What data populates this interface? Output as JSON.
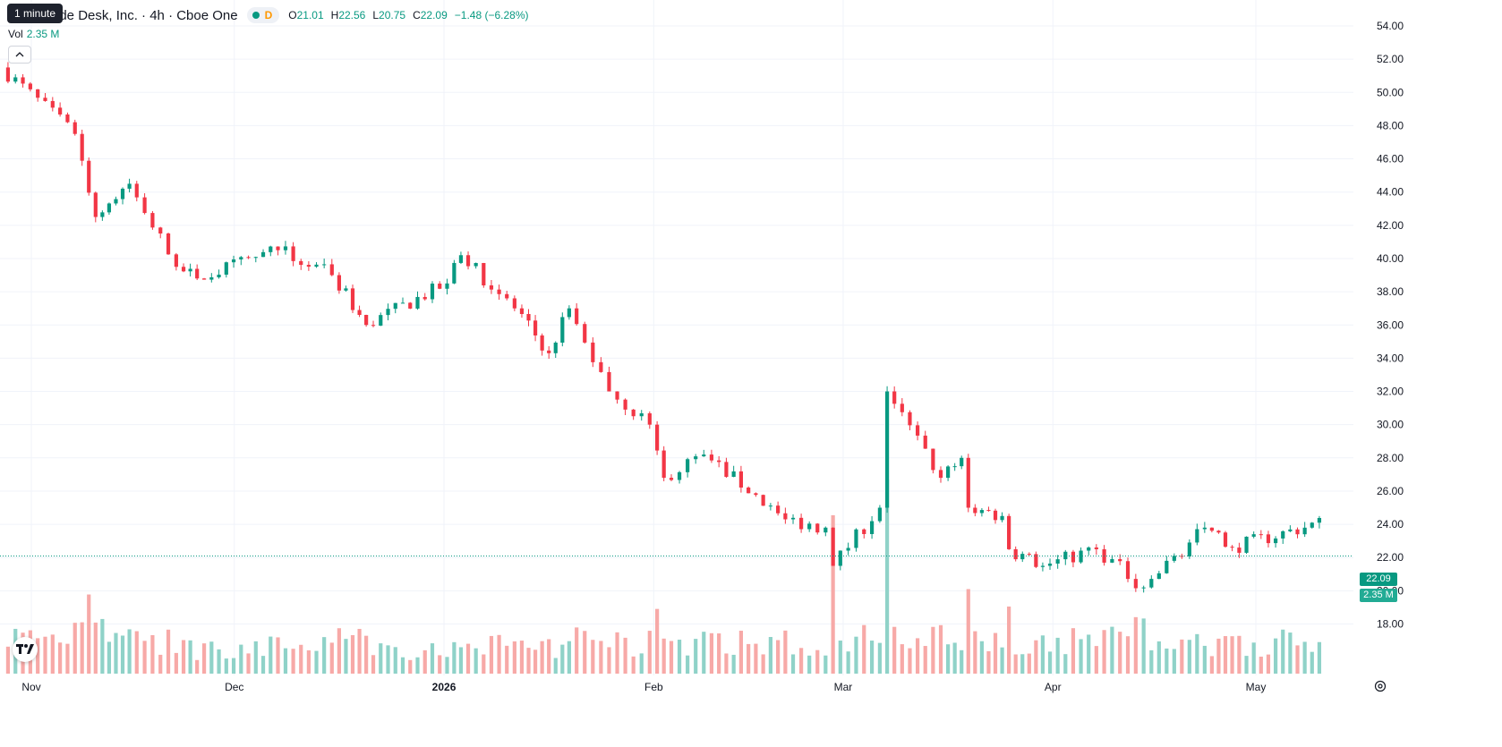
{
  "tooltip": "1 minute",
  "legend": {
    "symbol": "ade Desk, Inc. · 4h · Cboe One",
    "flag": "D",
    "o_label": "O",
    "o": "21.01",
    "h_label": "H",
    "h": "22.56",
    "l_label": "L",
    "l": "20.75",
    "c_label": "C",
    "c": "22.09",
    "change": "−1.48 (−6.28%)"
  },
  "volume_legend": {
    "label": "Vol",
    "value": "2.35 M"
  },
  "price_tag": "22.09",
  "volume_tag": "2.35 M",
  "colors": {
    "up": "#089981",
    "down": "#f23645",
    "vol_up": "#8fd2c8",
    "vol_down": "#f7a9a7",
    "grid": "#f0f3fa",
    "text": "#131722"
  },
  "icons": {
    "collapse": "chevron-up-icon",
    "logo": "tradingview-logo-icon",
    "settings": "gear-icon"
  },
  "chart_data": {
    "type": "candlestick",
    "interval": "4h",
    "y_axis": {
      "min": 18,
      "max": 54,
      "step": 2,
      "position": "right",
      "ticks": [
        "54.00",
        "52.00",
        "50.00",
        "48.00",
        "46.00",
        "44.00",
        "42.00",
        "40.00",
        "38.00",
        "36.00",
        "34.00",
        "32.00",
        "30.00",
        "28.00",
        "26.00",
        "24.00",
        "22.00",
        "20.00",
        "18.00"
      ]
    },
    "x_axis": {
      "labels": [
        {
          "text": "Nov",
          "date": "2025-11-01"
        },
        {
          "text": "Dec",
          "date": "2025-12-01"
        },
        {
          "text": "2026",
          "date": "2026-01-01",
          "bold": true
        },
        {
          "text": "Feb",
          "date": "2026-02-01"
        },
        {
          "text": "Mar",
          "date": "2026-03-01"
        },
        {
          "text": "Apr",
          "date": "2026-04-01"
        },
        {
          "text": "May",
          "date": "2026-05-01"
        }
      ]
    },
    "last_close": 22.09,
    "segments": [
      {
        "start": "2025-10-28",
        "end": "2025-11-08",
        "from": 51.5,
        "to": 47.5,
        "vol": 1.2
      },
      {
        "start": "2025-11-08",
        "end": "2025-11-11",
        "from": 47.5,
        "to": 42.5,
        "vol": 2.8
      },
      {
        "start": "2025-11-11",
        "end": "2025-11-16",
        "from": 42.5,
        "to": 44.5,
        "vol": 1.3
      },
      {
        "start": "2025-11-16",
        "end": "2025-11-23",
        "from": 44.5,
        "to": 39.5,
        "vol": 1.0
      },
      {
        "start": "2025-11-23",
        "end": "2025-11-26",
        "from": 39.5,
        "to": 38.8,
        "vol": 0.8
      },
      {
        "start": "2025-11-26",
        "end": "2025-12-08",
        "from": 38.8,
        "to": 40.5,
        "vol": 0.9
      },
      {
        "start": "2025-12-08",
        "end": "2025-12-16",
        "from": 40.5,
        "to": 39.0,
        "vol": 0.9
      },
      {
        "start": "2025-12-16",
        "end": "2025-12-21",
        "from": 39.0,
        "to": 36.0,
        "vol": 1.2
      },
      {
        "start": "2025-12-21",
        "end": "2026-01-02",
        "from": 36.0,
        "to": 38.5,
        "vol": 0.8
      },
      {
        "start": "2026-01-02",
        "end": "2026-01-04",
        "from": 38.5,
        "to": 40.2,
        "vol": 1.4
      },
      {
        "start": "2026-01-04",
        "end": "2026-01-12",
        "from": 40.2,
        "to": 37.0,
        "vol": 1.0
      },
      {
        "start": "2026-01-12",
        "end": "2026-01-17",
        "from": 37.0,
        "to": 34.3,
        "vol": 0.9
      },
      {
        "start": "2026-01-17",
        "end": "2026-01-20",
        "from": 34.3,
        "to": 37.0,
        "vol": 0.8
      },
      {
        "start": "2026-01-20",
        "end": "2026-01-26",
        "from": 37.0,
        "to": 32.0,
        "vol": 1.3
      },
      {
        "start": "2026-01-26",
        "end": "2026-02-01",
        "from": 32.0,
        "to": 30.0,
        "vol": 1.0
      },
      {
        "start": "2026-02-01",
        "end": "2026-02-03",
        "from": 30.0,
        "to": 26.8,
        "vol": 1.8
      },
      {
        "start": "2026-02-03",
        "end": "2026-02-09",
        "from": 26.8,
        "to": 28.2,
        "vol": 1.0
      },
      {
        "start": "2026-02-09",
        "end": "2026-02-21",
        "from": 28.2,
        "to": 24.3,
        "vol": 1.0
      },
      {
        "start": "2026-02-21",
        "end": "2026-02-27",
        "from": 24.3,
        "to": 23.8,
        "vol": 0.9
      },
      {
        "start": "2026-02-27",
        "end": "2026-02-28",
        "from": 23.8,
        "to": 21.5,
        "vol": 4.0
      },
      {
        "start": "2026-02-28",
        "end": "2026-03-07",
        "from": 21.5,
        "to": 25.0,
        "vol": 1.3
      },
      {
        "start": "2026-03-07",
        "end": "2026-03-08",
        "from": 25.0,
        "to": 32.0,
        "vol": 5.5
      },
      {
        "start": "2026-03-08",
        "end": "2026-03-16",
        "from": 32.0,
        "to": 26.8,
        "vol": 1.2
      },
      {
        "start": "2026-03-16",
        "end": "2026-03-19",
        "from": 26.8,
        "to": 28.0,
        "vol": 1.0
      },
      {
        "start": "2026-03-19",
        "end": "2026-03-20",
        "from": 28.0,
        "to": 25.0,
        "vol": 3.4
      },
      {
        "start": "2026-03-20",
        "end": "2026-03-25",
        "from": 25.0,
        "to": 24.5,
        "vol": 1.0
      },
      {
        "start": "2026-03-25",
        "end": "2026-03-26",
        "from": 24.5,
        "to": 22.5,
        "vol": 3.2
      },
      {
        "start": "2026-03-26",
        "end": "2026-03-31",
        "from": 22.5,
        "to": 21.5,
        "vol": 1.0
      },
      {
        "start": "2026-03-31",
        "end": "2026-04-08",
        "from": 21.5,
        "to": 22.5,
        "vol": 1.1
      },
      {
        "start": "2026-04-08",
        "end": "2026-04-15",
        "from": 22.5,
        "to": 20.2,
        "vol": 1.3
      },
      {
        "start": "2026-04-15",
        "end": "2026-04-24",
        "from": 20.2,
        "to": 23.8,
        "vol": 1.0
      },
      {
        "start": "2026-04-24",
        "end": "2026-04-28",
        "from": 23.8,
        "to": 22.6,
        "vol": 1.0
      },
      {
        "start": "2026-04-28",
        "end": "2026-05-12",
        "from": 22.6,
        "to": 24.2,
        "vol": 1.0
      },
      {
        "start": "2026-05-12",
        "end": "2026-05-14",
        "from": 24.2,
        "to": 23.4,
        "vol": 1.0
      }
    ],
    "last_candle": {
      "date": "2026-05-14",
      "open": 21.01,
      "high": 22.56,
      "low": 20.75,
      "close": 22.09,
      "volume_m": 2.35
    }
  }
}
